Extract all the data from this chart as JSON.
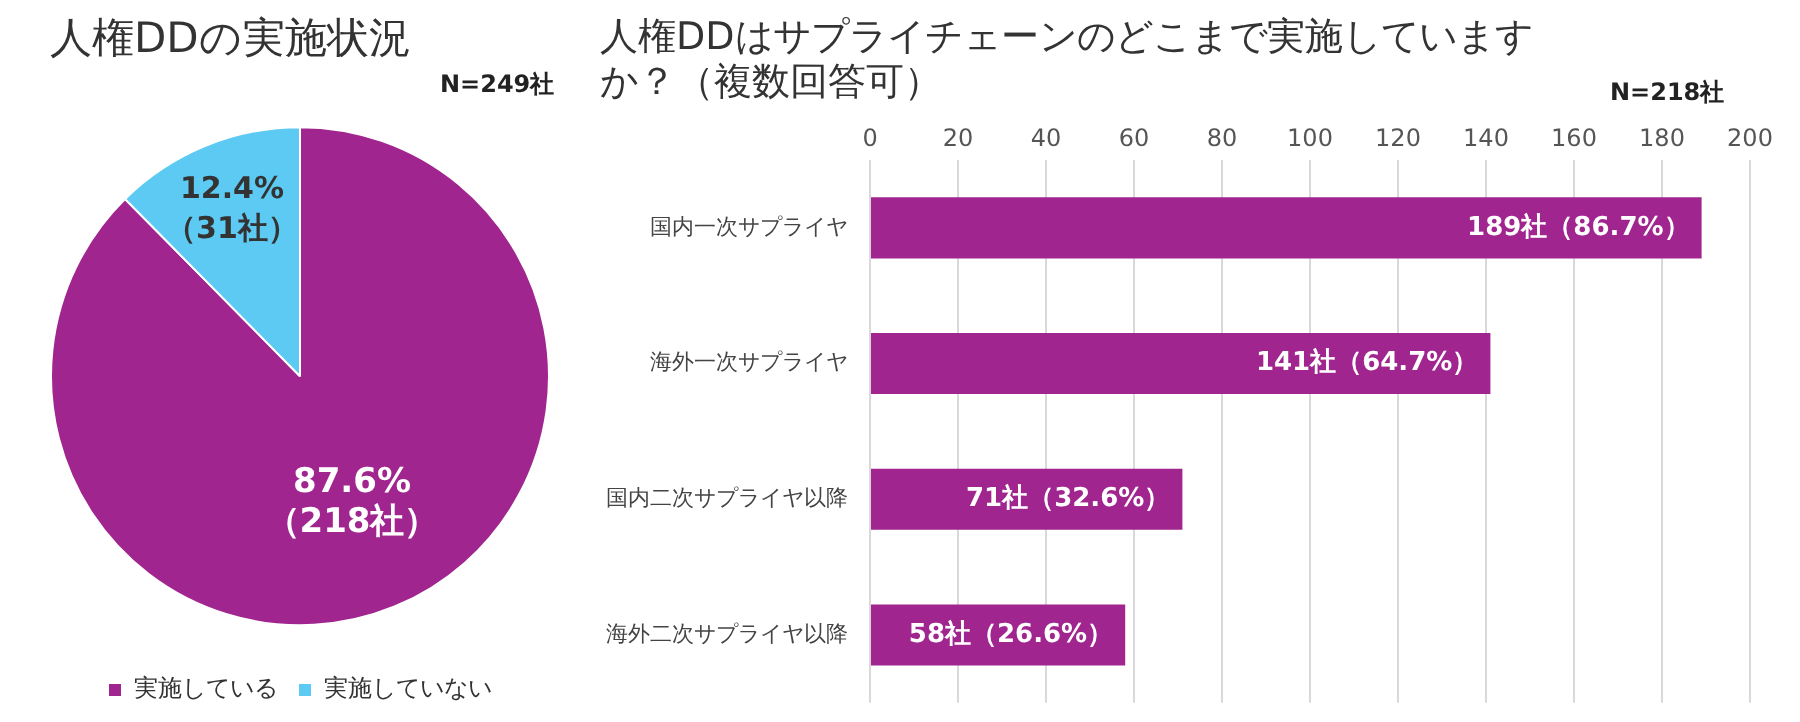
{
  "chart_data": [
    {
      "type": "pie",
      "title": "人権DDの実施状況",
      "annotations": [
        "N=249社"
      ],
      "categories": [
        "実施している",
        "実施していない"
      ],
      "values": [
        87.6,
        12.4
      ],
      "colors": [
        "#a0258f",
        "#5ccaf2"
      ],
      "value_labels": [
        "87.6%\n（218社）",
        "12.4%\n（31社）"
      ],
      "legend": "bottom"
    },
    {
      "type": "bar",
      "orientation": "horizontal",
      "title": "人権DDはサプライチェーンのどこまで実施していますか？（複数回答可）",
      "annotations": [
        "N=218社"
      ],
      "categories": [
        "国内一次サプライヤ",
        "海外一次サプライヤ",
        "国内二次サプライヤ以降",
        "海外二次サプライヤ以降"
      ],
      "values": [
        189,
        141,
        71,
        58
      ],
      "color": "#a0258f",
      "value_labels": [
        "189社（86.7%）",
        "141社（64.7%）",
        "71社（32.6%）",
        "58社（26.6%）"
      ],
      "xlim": [
        0,
        200
      ],
      "xticks": [
        0,
        20,
        40,
        60,
        80,
        100,
        120,
        140,
        160,
        180,
        200
      ],
      "grid": "x",
      "legend": false
    }
  ]
}
